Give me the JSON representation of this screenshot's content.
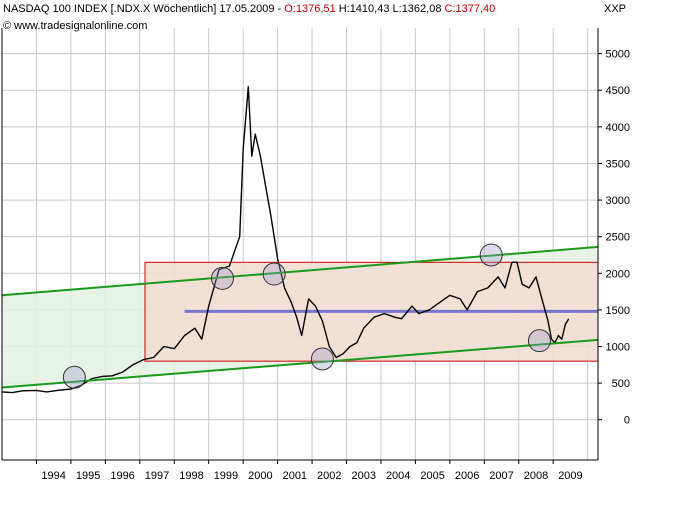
{
  "header": {
    "title": "NASDAQ 100 INDEX [.NDX.X  Wöchentlich] 17.05.2009 - ",
    "open": "O:1376,51",
    "high": "H:1410,43",
    "low": "L:1362,08",
    "close": "C:1377,40",
    "source": "© www.tradesignalonline.com"
  },
  "axis_name": "XXP",
  "chart_data": {
    "type": "line",
    "title": "NASDAQ 100 INDEX [.NDX.X Wöchentlich] 17.05.2009",
    "xlim": [
      1993.0,
      2010.3
    ],
    "ylim": [
      -550,
      5350
    ],
    "x_ticks": [
      1994.5,
      1995.5,
      1996.5,
      1997.5,
      1998.5,
      1999.5,
      2000.5,
      2001.5,
      2002.5,
      2003.5,
      2004.5,
      2005.5,
      2006.5,
      2007.5,
      2008.5,
      2009.5
    ],
    "x_tick_labels": [
      "1994",
      "1995",
      "1996",
      "1997",
      "1998",
      "1999",
      "2000",
      "2001",
      "2002",
      "2003",
      "2004",
      "2005",
      "2006",
      "2007",
      "2008",
      "2009"
    ],
    "y_ticks": [
      0,
      500,
      1000,
      1500,
      2000,
      2500,
      3000,
      3500,
      4000,
      4500,
      5000
    ],
    "y_tick_labels": [
      "0",
      "500",
      "1000",
      "1500",
      "2000",
      "2500",
      "3000",
      "3500",
      "4000",
      "4500",
      "5000"
    ],
    "grid": true,
    "series": [
      {
        "points": [
          [
            1993.0,
            380
          ],
          [
            1993.3,
            370
          ],
          [
            1993.6,
            395
          ],
          [
            1994.0,
            400
          ],
          [
            1994.3,
            380
          ],
          [
            1994.6,
            400
          ],
          [
            1995.0,
            420
          ],
          [
            1995.3,
            470
          ],
          [
            1995.6,
            560
          ],
          [
            1995.9,
            590
          ],
          [
            1996.2,
            600
          ],
          [
            1996.5,
            650
          ],
          [
            1996.8,
            750
          ],
          [
            1997.1,
            820
          ],
          [
            1997.4,
            850
          ],
          [
            1997.7,
            1000
          ],
          [
            1998.0,
            970
          ],
          [
            1998.3,
            1150
          ],
          [
            1998.6,
            1250
          ],
          [
            1998.8,
            1100
          ],
          [
            1999.0,
            1550
          ],
          [
            1999.3,
            2050
          ],
          [
            1999.6,
            2100
          ],
          [
            1999.9,
            2500
          ],
          [
            2000.0,
            3700
          ],
          [
            2000.15,
            4550
          ],
          [
            2000.25,
            3600
          ],
          [
            2000.35,
            3900
          ],
          [
            2000.5,
            3600
          ],
          [
            2000.65,
            3200
          ],
          [
            2000.8,
            2800
          ],
          [
            2001.0,
            2200
          ],
          [
            2001.2,
            1800
          ],
          [
            2001.4,
            1600
          ],
          [
            2001.55,
            1400
          ],
          [
            2001.7,
            1150
          ],
          [
            2001.9,
            1650
          ],
          [
            2002.1,
            1550
          ],
          [
            2002.3,
            1350
          ],
          [
            2002.5,
            1000
          ],
          [
            2002.7,
            850
          ],
          [
            2002.9,
            900
          ],
          [
            2003.1,
            1000
          ],
          [
            2003.3,
            1050
          ],
          [
            2003.5,
            1250
          ],
          [
            2003.8,
            1400
          ],
          [
            2004.1,
            1450
          ],
          [
            2004.4,
            1400
          ],
          [
            2004.6,
            1380
          ],
          [
            2004.9,
            1550
          ],
          [
            2005.1,
            1450
          ],
          [
            2005.4,
            1500
          ],
          [
            2005.7,
            1600
          ],
          [
            2006.0,
            1700
          ],
          [
            2006.3,
            1650
          ],
          [
            2006.5,
            1500
          ],
          [
            2006.8,
            1750
          ],
          [
            2007.1,
            1800
          ],
          [
            2007.4,
            1950
          ],
          [
            2007.6,
            1800
          ],
          [
            2007.8,
            2150
          ],
          [
            2007.95,
            2150
          ],
          [
            2008.1,
            1850
          ],
          [
            2008.3,
            1800
          ],
          [
            2008.5,
            1950
          ],
          [
            2008.7,
            1600
          ],
          [
            2008.85,
            1350
          ],
          [
            2008.95,
            1100
          ],
          [
            2009.05,
            1050
          ],
          [
            2009.15,
            1150
          ],
          [
            2009.25,
            1100
          ],
          [
            2009.35,
            1300
          ],
          [
            2009.45,
            1377
          ]
        ]
      }
    ],
    "overlays": {
      "rectangle_red": {
        "x": [
          1997.15,
          2010.3
        ],
        "y": [
          800,
          2150
        ],
        "fill": "#f2dccf",
        "stroke": "#cc0000"
      },
      "trend_channel_upper": {
        "x": [
          1993.0,
          2010.3
        ],
        "y": [
          1700,
          2360
        ],
        "color": "#1a9a1a"
      },
      "trend_channel_lower": {
        "x": [
          1993.0,
          2010.3
        ],
        "y": [
          440,
          1090
        ],
        "color": "#1a9a1a"
      },
      "channel_fill": "#e3f1e3",
      "horizontal_line": {
        "x": [
          1998.3,
          2010.3
        ],
        "y": 1480,
        "color": "#7b74cc"
      },
      "circles": [
        [
          1995.1,
          580
        ],
        [
          1999.4,
          1930
        ],
        [
          2000.9,
          1990
        ],
        [
          2002.3,
          830
        ],
        [
          2007.2,
          2250
        ],
        [
          2008.6,
          1080
        ]
      ]
    }
  }
}
